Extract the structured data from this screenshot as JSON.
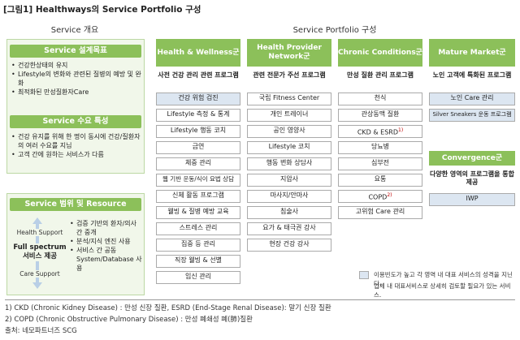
{
  "title": "[그림1] Healthways의 Service Portfolio 구성",
  "left_header": "Service 개요",
  "right_header": "Service Portfolio 구성",
  "goal": {
    "title": "Service 설계목표",
    "items": [
      "건강한상태의 유지",
      "Lifestyle의 변화와 관련된 질병의 예방 및 완화",
      "최적화된 만성질환자Care"
    ]
  },
  "demand": {
    "title": "Service 수요 특성",
    "items": [
      "건강 유지를 위해 한 명이 동시에 건강/질환자의 여러 수요를 지님",
      "고객 간에 원하는 서비스가 다름"
    ]
  },
  "scope": {
    "title": "Service 범위 및 Resource",
    "health_support": "Health Support",
    "full_spectrum": "Full spectrum 서비스 제공",
    "care_support": "Care Support",
    "items": [
      "검증 기반의 환자/의사 간 중개",
      "분석/지식 엔진 사용",
      "서비스 간 공동 System/Database 사용"
    ]
  },
  "columns": [
    {
      "head": "Health & Wellness군",
      "sub": "사전 건강 관리 관련 프로그램",
      "items": [
        {
          "label": "건강 위험 검진",
          "hl": true
        },
        {
          "label": "Lifestyle 측정 & 통계",
          "hl": false
        },
        {
          "label": "Lifestyle 행동 코치",
          "hl": false
        },
        {
          "label": "금연",
          "hl": false
        },
        {
          "label": "체중 관리",
          "hl": false
        },
        {
          "label": "웹 기반 운동/식이 요법 상담",
          "hl": false
        },
        {
          "label": "신체 활동 프로그램",
          "hl": false
        },
        {
          "label": "웰빙 & 질병 예방 교육",
          "hl": false
        },
        {
          "label": "스트레스 관리",
          "hl": false
        },
        {
          "label": "집중 등 관리",
          "hl": false
        },
        {
          "label": "직장 웰빙 & 선별",
          "hl": false
        },
        {
          "label": "임신 관리",
          "hl": false
        }
      ]
    },
    {
      "head": "Health Provider Network군",
      "sub": "관련 전문가 주선 프로그램",
      "items": [
        {
          "label": "국립 Fitness Center",
          "hl": false
        },
        {
          "label": "개인 트레이너",
          "hl": false
        },
        {
          "label": "공인 영양사",
          "hl": false
        },
        {
          "label": "Lifestyle 코치",
          "hl": false
        },
        {
          "label": "행동 변화 상담사",
          "hl": false
        },
        {
          "label": "지압사",
          "hl": false
        },
        {
          "label": "마사지/안마사",
          "hl": false
        },
        {
          "label": "침술사",
          "hl": false
        },
        {
          "label": "요가 & 태극권 강사",
          "hl": false
        },
        {
          "label": "현장 건강 강사",
          "hl": false
        }
      ]
    },
    {
      "head": "Chronic Conditions군",
      "sub": "만성 질환 관리 프로그램",
      "items": [
        {
          "label": "천식",
          "hl": false
        },
        {
          "label": "관상동맥 질환",
          "hl": false
        },
        {
          "label": "CKD & ESRD",
          "sup": "1)",
          "hl": false
        },
        {
          "label": "당뇨병",
          "hl": false
        },
        {
          "label": "심부전",
          "hl": false
        },
        {
          "label": "요통",
          "hl": false
        },
        {
          "label": "COPD",
          "sup": "2)",
          "hl": false
        },
        {
          "label": "고위험 Care 관리",
          "hl": false
        }
      ]
    }
  ],
  "mature": {
    "head": "Mature Market군",
    "sub": "노인 고객에 특화된 프로그램",
    "items": [
      {
        "label": "노인 Care 관리",
        "hl": true
      },
      {
        "label": "Silver Sneakers 운동 프로그램",
        "hl": true
      }
    ]
  },
  "convergence": {
    "head": "Convergence군",
    "sub": "다양한 영역의 프로그램을 통합 제공",
    "items": [
      {
        "label": "IWP",
        "hl": true
      }
    ]
  },
  "legend": {
    "line1": "이용빈도가 높고 각 영역 내 대표 서비스의 성격을 지닌다.",
    "line2": "업체 내 대표서비스로 상세히 검토할 필요가 있는 서비스."
  },
  "footnotes": [
    "1) CKD (Chronic Kidney Disease) : 만성 신장 질환, ESRD (End-Stage Renal Disease): 말기 신장 질환",
    "2) COPD (Chronic Obstructive Pulmonary Disease) : 만성 폐쇄성 폐(肺)질환",
    "출처: 네모파트너즈 SCG"
  ]
}
